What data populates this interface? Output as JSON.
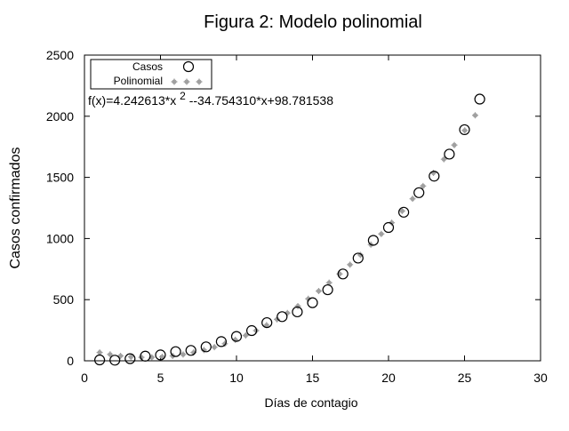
{
  "chart_data": {
    "type": "scatter",
    "title": "Figura 2: Modelo polinomial",
    "xlabel": "Días de contagio",
    "ylabel": "Casos confirmados",
    "xlim": [
      0,
      30
    ],
    "ylim": [
      0,
      2500
    ],
    "xticks": [
      0,
      5,
      10,
      15,
      20,
      25,
      30
    ],
    "yticks": [
      0,
      500,
      1000,
      1500,
      2000,
      2500
    ],
    "grid": false,
    "legend_position": "top-left",
    "annotation": "f(x)=4.242613*x ^2 --34.754310*x+98.781538",
    "annotation_parts": {
      "base": "f(x)=4.242613*x ",
      "exp": "2",
      "rest": " --34.754310*x+98.781538"
    },
    "series": [
      {
        "name": "Casos",
        "marker": "open-circle",
        "color": "#000000",
        "x": [
          1,
          2,
          3,
          4,
          5,
          6,
          7,
          8,
          9,
          10,
          11,
          12,
          13,
          14,
          15,
          16,
          17,
          18,
          19,
          20,
          21,
          22,
          23,
          24,
          25,
          26
        ],
        "y": [
          7,
          5,
          17,
          38,
          48,
          75,
          85,
          114,
          157,
          199,
          247,
          312,
          361,
          400,
          475,
          581,
          710,
          840,
          985,
          1090,
          1215,
          1375,
          1510,
          1690,
          1890,
          2140
        ]
      },
      {
        "name": "Polinomial",
        "marker": "gray-star",
        "color": "#a0a0a0",
        "function": {
          "a": 4.242613,
          "b": -34.75431,
          "c": 98.781538
        },
        "x_range": [
          1,
          25.7
        ],
        "samples": 37
      }
    ]
  }
}
